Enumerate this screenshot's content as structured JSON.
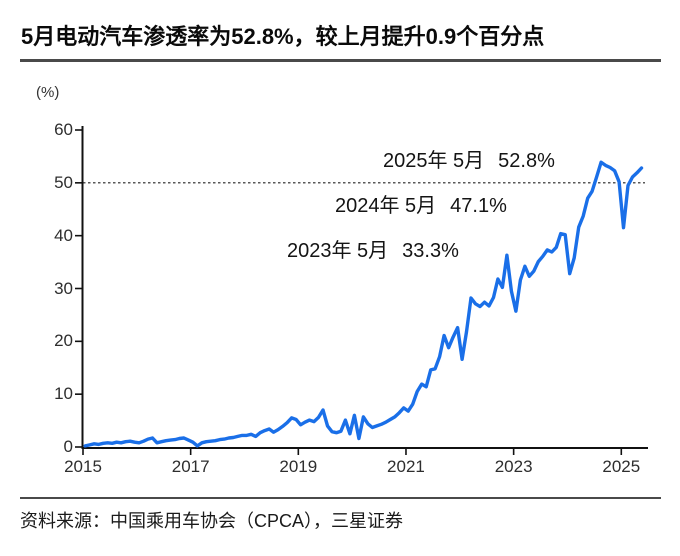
{
  "title": "5月电动汽车渗透率为52.8%，较上月提升0.9个百分点",
  "source_note": "资料来源：中国乘用车协会（CPCA），三星证券",
  "chart_data": {
    "type": "line",
    "title": "5月电动汽车渗透率为52.8%，较上月提升0.9个百分点",
    "xlabel": "",
    "ylabel": "(%)",
    "ylim": [
      0,
      60
    ],
    "yticks": [
      0,
      10,
      20,
      30,
      40,
      50,
      60
    ],
    "xticks": [
      2015,
      2017,
      2019,
      2021,
      2023,
      2025
    ],
    "grid": false,
    "legend_position": "none",
    "reference_line_y": 50,
    "reference_line_style": "dotted",
    "line_color": "#1a6fe8",
    "frequency": "monthly",
    "start": "2015-01",
    "end": "2025-05",
    "values": [
      0.2,
      0.4,
      0.6,
      0.5,
      0.7,
      0.8,
      0.7,
      0.9,
      0.8,
      1.0,
      1.1,
      0.9,
      0.8,
      1.1,
      1.5,
      1.7,
      0.8,
      1.0,
      1.2,
      1.3,
      1.4,
      1.6,
      1.7,
      1.3,
      0.9,
      0.2,
      0.8,
      1.0,
      1.1,
      1.2,
      1.4,
      1.5,
      1.7,
      1.8,
      2.0,
      2.2,
      2.2,
      2.4,
      2.0,
      2.7,
      3.1,
      3.4,
      2.8,
      3.3,
      3.9,
      4.6,
      5.5,
      5.2,
      4.2,
      4.7,
      5.1,
      4.8,
      5.6,
      7.0,
      4.0,
      2.9,
      2.7,
      3.0,
      5.1,
      2.5,
      6.0,
      1.6,
      5.7,
      4.4,
      3.7,
      4.0,
      4.3,
      4.7,
      5.2,
      5.7,
      6.5,
      7.4,
      6.8,
      8.1,
      10.5,
      11.9,
      11.4,
      14.6,
      14.8,
      17.1,
      21.1,
      18.8,
      20.8,
      22.6,
      16.6,
      21.8,
      28.2,
      27.1,
      26.6,
      27.4,
      26.7,
      28.3,
      31.8,
      30.2,
      36.3,
      29.5,
      25.7,
      31.6,
      34.2,
      32.3,
      33.3,
      35.1,
      36.1,
      37.3,
      36.9,
      37.8,
      40.4,
      40.2,
      32.8,
      35.8,
      41.6,
      43.7,
      47.1,
      48.4,
      51.1,
      53.9,
      53.3,
      52.9,
      52.3,
      50.2,
      41.5,
      49.5,
      51.1,
      51.9,
      52.8
    ],
    "annotations": [
      {
        "label": "2025年 5月",
        "value": "52.8%"
      },
      {
        "label": "2024年 5月",
        "value": "47.1%"
      },
      {
        "label": "2023年 5月",
        "value": "33.3%"
      }
    ]
  }
}
